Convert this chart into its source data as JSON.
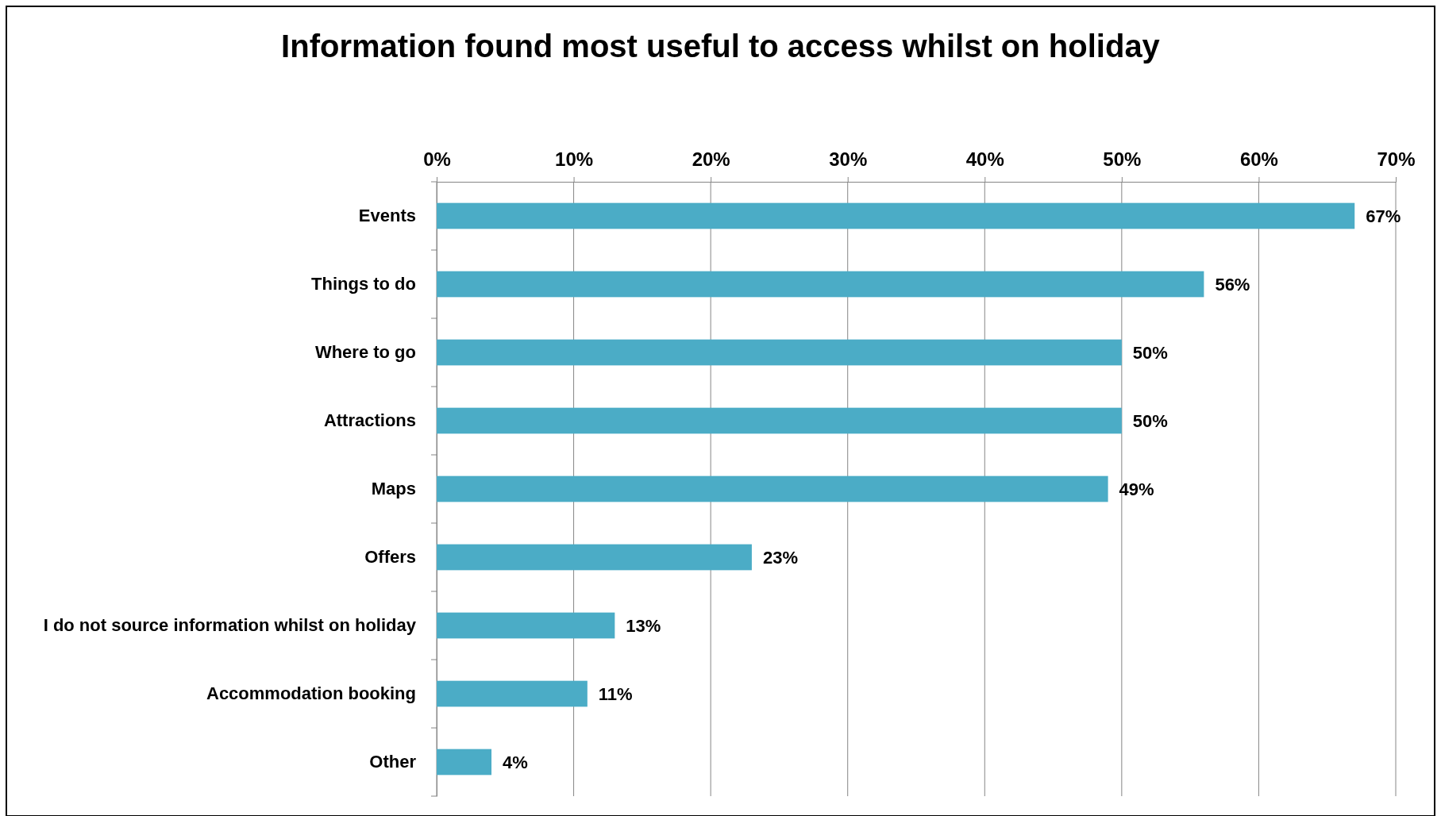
{
  "chart_data": {
    "type": "bar",
    "orientation": "horizontal",
    "title": "Information found most useful to access whilst on holiday",
    "categories": [
      "Events",
      "Things to do",
      "Where to go",
      "Attractions",
      "Maps",
      "Offers",
      "I do not source information whilst on holiday",
      "Accommodation booking",
      "Other"
    ],
    "values": [
      67,
      56,
      50,
      50,
      49,
      23,
      13,
      11,
      4
    ],
    "value_labels": [
      "67%",
      "56%",
      "50%",
      "50%",
      "49%",
      "23%",
      "13%",
      "11%",
      "4%"
    ],
    "color": "#4bacc6",
    "xlim": [
      0,
      70
    ],
    "xticks": [
      {
        "value": 0,
        "label": "0%"
      },
      {
        "value": 10,
        "label": "10%"
      },
      {
        "value": 20,
        "label": "20%"
      },
      {
        "value": 30,
        "label": "30%"
      },
      {
        "value": 40,
        "label": "40%"
      },
      {
        "value": 50,
        "label": "50%"
      },
      {
        "value": 60,
        "label": "60%"
      },
      {
        "value": 70,
        "label": "70%"
      }
    ],
    "grid": "x"
  }
}
